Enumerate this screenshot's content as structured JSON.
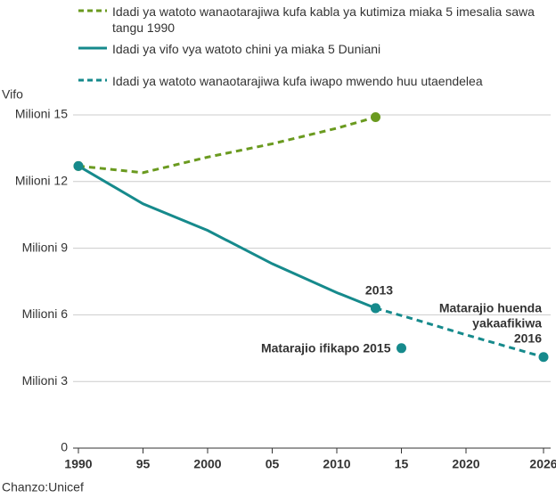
{
  "chart_data": {
    "type": "line",
    "y_label": "Vifo",
    "source": "Chanzo:Unicef",
    "xlim": [
      1990,
      2026
    ],
    "xticks": [
      1990,
      {
        "value": 1995,
        "label": "95"
      },
      2000,
      {
        "value": 2005,
        "label": "05"
      },
      2010,
      {
        "value": 2015,
        "label": "15"
      },
      2020,
      2026
    ],
    "ylim": [
      0,
      15
    ],
    "yticks": [
      0,
      {
        "value": 3,
        "label": "Milioni 3"
      },
      {
        "value": 6,
        "label": "Milioni 6"
      },
      {
        "value": 9,
        "label": "Milioni 9"
      },
      {
        "value": 12,
        "label": "Milioni 12"
      },
      {
        "value": 15,
        "label": "Milioni 15"
      }
    ],
    "grid": true,
    "series": [
      {
        "name": "Idadi ya watoto wanaotarajiwa kufa kabla ya kutimiza miaka 5 imesalia sawa tangu 1990",
        "color": "#6a9a1f",
        "dashed": true,
        "x": [
          1990,
          1995,
          2000,
          2005,
          2010,
          2013
        ],
        "values": [
          12.7,
          12.4,
          13.1,
          13.7,
          14.4,
          14.9
        ]
      },
      {
        "name": "Idadi ya vifo vya watoto chini ya miaka 5 Duniani",
        "color": "#168a8c",
        "dashed": false,
        "x": [
          1990,
          1995,
          2000,
          2005,
          2010,
          2013
        ],
        "values": [
          12.7,
          11.0,
          9.8,
          8.3,
          7.0,
          6.3
        ]
      },
      {
        "name": "Idadi ya watoto wanaotarajiwa kufa iwapo mwendo huu utaendelea",
        "color": "#168a8c",
        "dashed": true,
        "x": [
          2013,
          2016,
          2020,
          2026
        ],
        "values": [
          6.3,
          5.8,
          5.1,
          4.1
        ]
      }
    ],
    "point": {
      "label": "Matarajio ifikapo 2015",
      "x": 2015,
      "value": 4.5,
      "color": "#168a8c"
    },
    "annotations": {
      "year": "2013",
      "forecast": [
        "Matarajio huenda",
        "yakaafikiwa",
        "2016"
      ]
    }
  }
}
